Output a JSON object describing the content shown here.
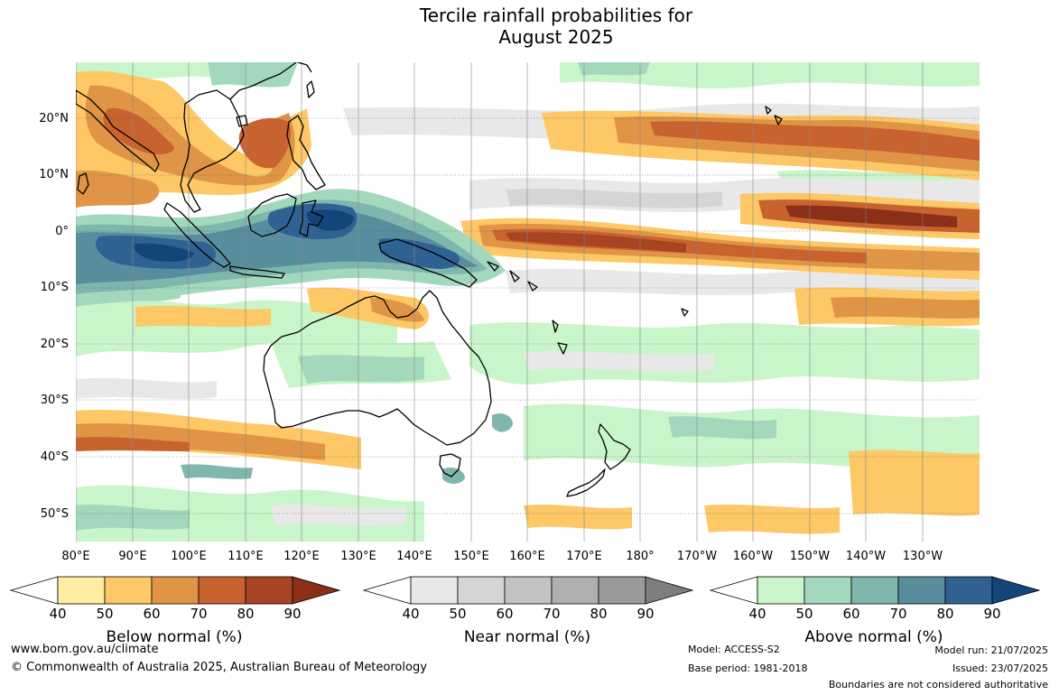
{
  "title": {
    "line1": "Tercile rainfall probabilities for",
    "line2": "August 2025"
  },
  "map": {
    "region": "Australia, Maritime Continent and western/central Pacific",
    "lat_labels": [
      "20°N",
      "10°N",
      "0°",
      "10°S",
      "20°S",
      "30°S",
      "40°S",
      "50°S"
    ],
    "lon_labels": [
      "80°E",
      "90°E",
      "100°E",
      "110°E",
      "120°E",
      "130°E",
      "140°E",
      "150°E",
      "160°E",
      "170°E",
      "180°",
      "170°W",
      "160°W",
      "150°W",
      "140°W",
      "130°W"
    ],
    "colors": {
      "below": [
        "#ffffff",
        "#ffeca0",
        "#fdc865",
        "#e09445",
        "#c8622f",
        "#a84421",
        "#8a2f18"
      ],
      "near": [
        "#ffffff",
        "#e8e8e8",
        "#d5d5d5",
        "#c2c2c2",
        "#afafaf",
        "#9a9a9a",
        "#7e7e7e"
      ],
      "above": [
        "#ffffff",
        "#c8f5c9",
        "#a3d8bd",
        "#7fb6ae",
        "#578d9d",
        "#2f6193",
        "#14457a"
      ]
    }
  },
  "colorbars": {
    "ticks": [
      "40",
      "50",
      "60",
      "70",
      "80",
      "90"
    ],
    "below_title": "Below normal (%)",
    "near_title": "Near normal (%)",
    "above_title": "Above normal (%)"
  },
  "footer": {
    "website": "www.bom.gov.au/climate",
    "copyright": "© Commonwealth of Australia 2025, Australian Bureau of Meteorology",
    "model": "Model: ACCESS-S2",
    "base_period": "Base period: 1981-2018",
    "model_run": "Model run: 21/07/2025",
    "issued": "Issued: 23/07/2025",
    "disclaimer": "Boundaries are not considered authoritative"
  }
}
